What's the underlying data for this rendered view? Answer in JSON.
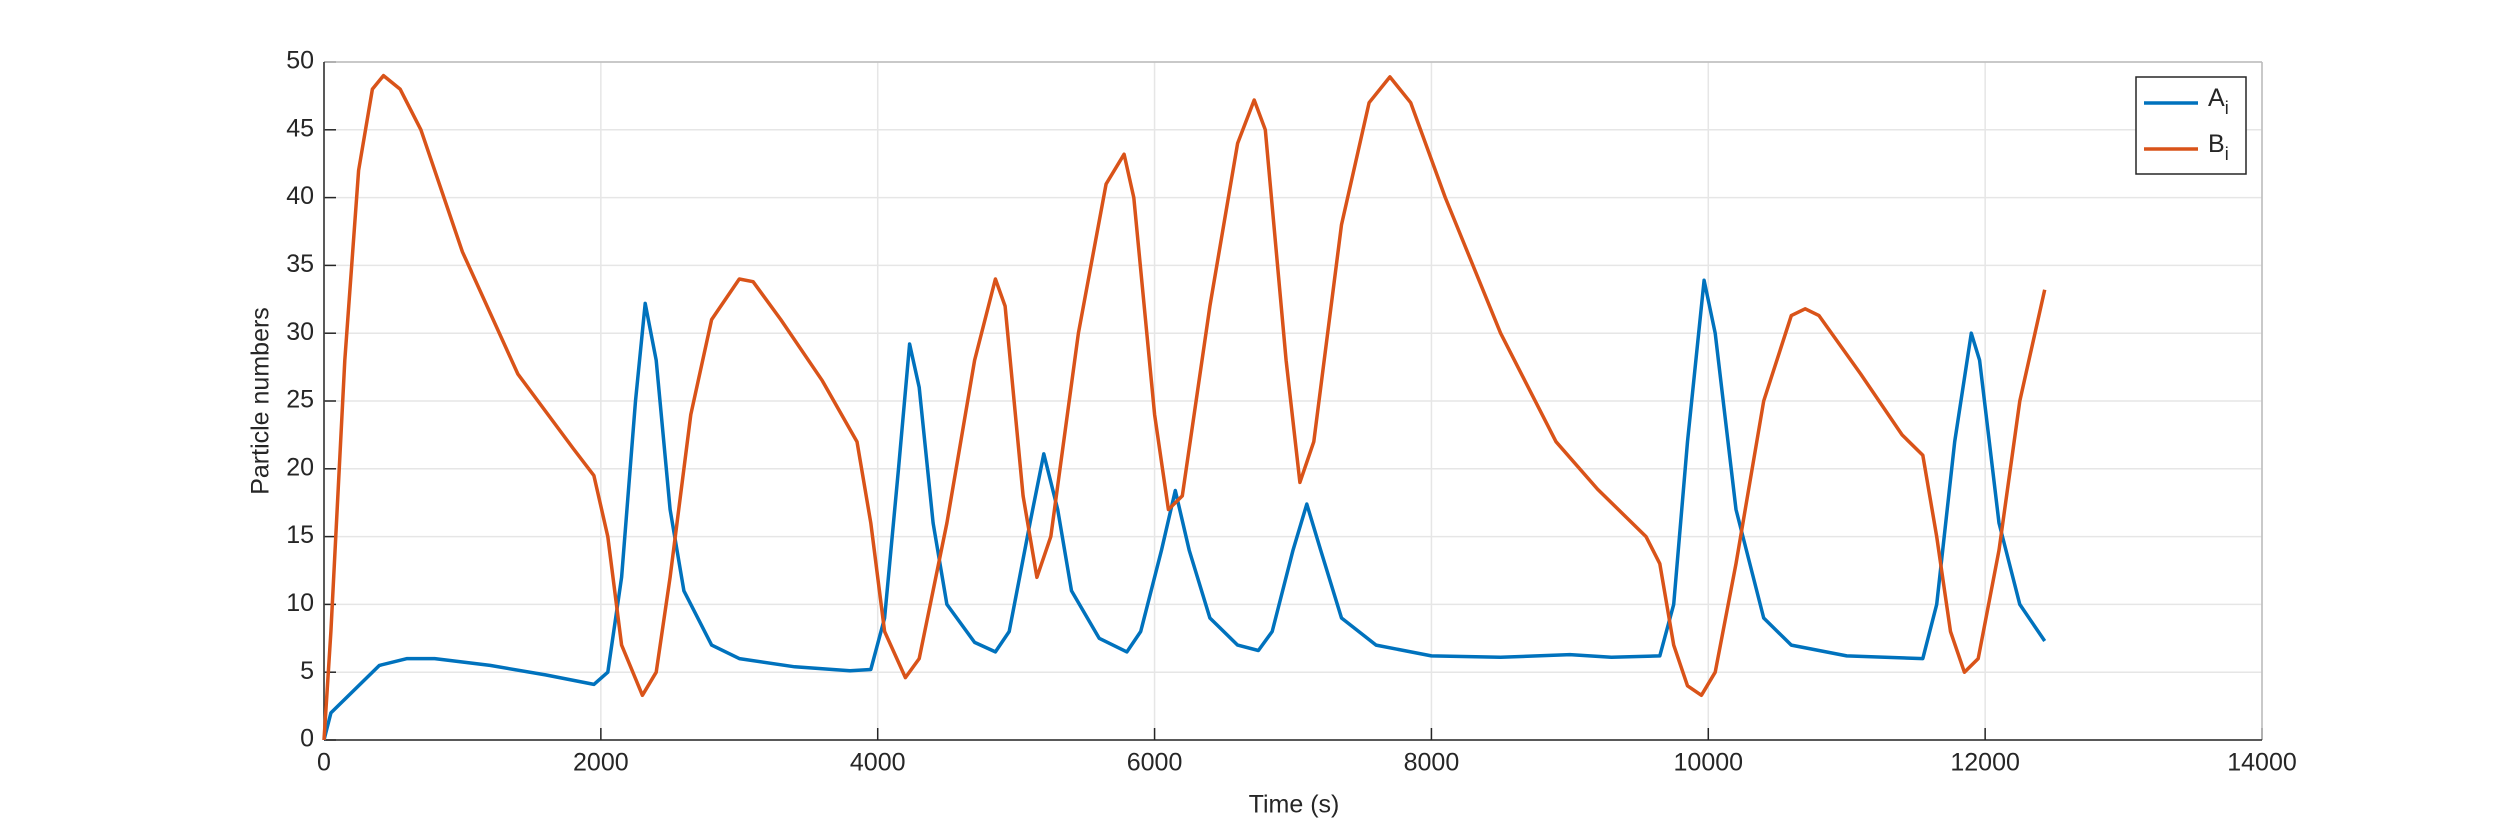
{
  "chart_data": {
    "type": "line",
    "xlabel": "Time (s)",
    "ylabel": "Particle numbers",
    "xlim": [
      0,
      14000
    ],
    "xticks": [
      0,
      2000,
      4000,
      6000,
      8000,
      10000,
      12000,
      14000
    ],
    "ylim": [
      0,
      50
    ],
    "yticks": [
      0,
      5,
      10,
      15,
      20,
      25,
      30,
      35,
      40,
      45,
      50
    ],
    "grid": true,
    "legend": "upper right",
    "series": [
      {
        "name": "Ai",
        "color": "#0072bd",
        "x": [
          0,
          50,
          200,
          400,
          600,
          800,
          1200,
          1600,
          1950,
          2050,
          2150,
          2250,
          2320,
          2400,
          2500,
          2600,
          2800,
          3000,
          3400,
          3800,
          3950,
          4050,
          4150,
          4230,
          4300,
          4400,
          4500,
          4700,
          4850,
          4950,
          5100,
          5200,
          5300,
          5400,
          5600,
          5800,
          5900,
          6050,
          6150,
          6250,
          6400,
          6600,
          6750,
          6850,
          7000,
          7100,
          7200,
          7350,
          7600,
          8000,
          8500,
          9000,
          9300,
          9650,
          9750,
          9850,
          9970,
          10050,
          10200,
          10400,
          10600,
          11000,
          11550,
          11650,
          11780,
          11900,
          11960,
          12100,
          12250,
          12430
        ],
        "values": [
          0,
          2,
          3.5,
          5.5,
          6,
          6,
          5.5,
          4.8,
          4.1,
          5,
          12,
          25,
          32.2,
          28,
          17,
          11,
          7,
          6,
          5.4,
          5.1,
          5.2,
          9,
          20,
          29.2,
          26,
          16,
          10,
          7.2,
          6.5,
          8,
          16,
          21.1,
          17,
          11,
          7.5,
          6.5,
          8,
          14,
          18.4,
          14,
          9,
          7,
          6.6,
          8,
          14,
          17.4,
          14,
          9,
          7,
          6.2,
          6.1,
          6.3,
          6.1,
          6.2,
          10,
          22,
          33.9,
          30,
          17,
          9,
          7,
          6.2,
          6,
          10,
          22,
          30,
          28,
          16,
          10,
          7.3
        ]
      },
      {
        "name": "Bi",
        "color": "#d95319",
        "x": [
          0,
          50,
          150,
          250,
          350,
          430,
          550,
          700,
          1000,
          1400,
          1800,
          1950,
          2050,
          2150,
          2300,
          2400,
          2500,
          2650,
          2800,
          3000,
          3100,
          3300,
          3600,
          3850,
          3950,
          4050,
          4200,
          4300,
          4500,
          4700,
          4850,
          4920,
          5050,
          5150,
          5250,
          5450,
          5650,
          5780,
          5850,
          6000,
          6100,
          6200,
          6400,
          6600,
          6720,
          6800,
          6950,
          7050,
          7150,
          7350,
          7550,
          7700,
          7850,
          8100,
          8500,
          8900,
          9200,
          9550,
          9650,
          9750,
          9850,
          9950,
          10050,
          10200,
          10400,
          10600,
          10700,
          10800,
          11100,
          11400,
          11550,
          11650,
          11750,
          11850,
          11950,
          12100,
          12250,
          12430
        ],
        "values": [
          0,
          8,
          28,
          42,
          48,
          49,
          48,
          45,
          36,
          27,
          21.5,
          19.5,
          15,
          7,
          3.3,
          5,
          12,
          24,
          31,
          34,
          33.8,
          31,
          26.5,
          22,
          16,
          8,
          4.6,
          6,
          16,
          28,
          34,
          32,
          18,
          12,
          15,
          30,
          41,
          43.2,
          40,
          24,
          17,
          18,
          32,
          44,
          47.2,
          45,
          28,
          19,
          22,
          38,
          47,
          48.9,
          47,
          40,
          30,
          22,
          18.5,
          15,
          13,
          7,
          4,
          3.3,
          5,
          13,
          25,
          31.3,
          31.8,
          31.3,
          27,
          22.5,
          21,
          15,
          8,
          5,
          6,
          14,
          25,
          33.2
        ]
      }
    ]
  }
}
